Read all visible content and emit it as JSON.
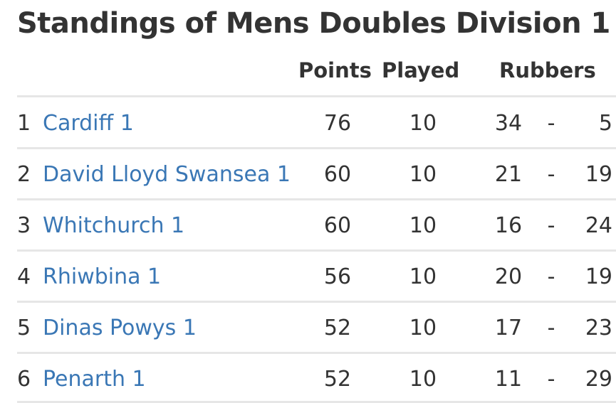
{
  "title": "Standings of Mens Doubles Division 1",
  "columns": {
    "points": "Points",
    "played": "Played",
    "rubbers": "Rubbers"
  },
  "rows": [
    {
      "pos": "1",
      "team": "Cardiff 1",
      "points": "76",
      "played": "10",
      "rubbers_for": "34",
      "sep": "-",
      "rubbers_against": "5"
    },
    {
      "pos": "2",
      "team": "David Lloyd Swansea 1",
      "points": "60",
      "played": "10",
      "rubbers_for": "21",
      "sep": "-",
      "rubbers_against": "19"
    },
    {
      "pos": "3",
      "team": "Whitchurch 1",
      "points": "60",
      "played": "10",
      "rubbers_for": "16",
      "sep": "-",
      "rubbers_against": "24"
    },
    {
      "pos": "4",
      "team": "Rhiwbina 1",
      "points": "56",
      "played": "10",
      "rubbers_for": "20",
      "sep": "-",
      "rubbers_against": "19"
    },
    {
      "pos": "5",
      "team": "Dinas Powys 1",
      "points": "52",
      "played": "10",
      "rubbers_for": "17",
      "sep": "-",
      "rubbers_against": "23"
    },
    {
      "pos": "6",
      "team": "Penarth 1",
      "points": "52",
      "played": "10",
      "rubbers_for": "11",
      "sep": "-",
      "rubbers_against": "29"
    }
  ],
  "colors": {
    "text": "#333333",
    "link": "#3a77b5",
    "divider": "#e6e6e6"
  }
}
